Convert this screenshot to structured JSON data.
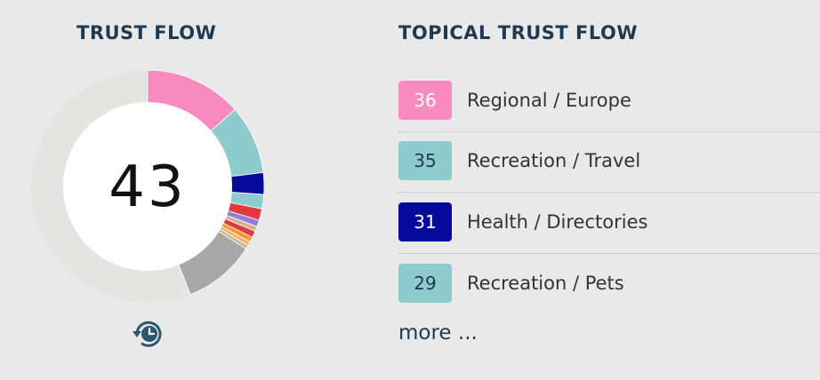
{
  "trust_flow": {
    "title": "TRUST FLOW",
    "score": "43",
    "track_color": "#e4e4e3",
    "segments": [
      {
        "value": 13.5,
        "color": "#f78bbf"
      },
      {
        "value": 9.6,
        "color": "#8ecbcc"
      },
      {
        "value": 3.0,
        "color": "#050a9c"
      },
      {
        "value": 2.0,
        "color": "#8ecbcc"
      },
      {
        "value": 1.6,
        "color": "#e0393e"
      },
      {
        "value": 0.9,
        "color": "#8e7ede"
      },
      {
        "value": 0.7,
        "color": "#d4b48a"
      },
      {
        "value": 0.9,
        "color": "#e0393e"
      },
      {
        "value": 0.7,
        "color": "#f39a33"
      },
      {
        "value": 0.6,
        "color": "#f4b66a"
      },
      {
        "value": 0.5,
        "color": "#c8b48f"
      },
      {
        "value": 10.0,
        "color": "#a8a8a8"
      }
    ],
    "history_icon": "history-clock-icon"
  },
  "topical_trust_flow": {
    "title": "TOPICAL TRUST FLOW",
    "topics": [
      {
        "score": "36",
        "label": "Regional / Europe",
        "color": "#f78bbf",
        "text_color": "#ffffff"
      },
      {
        "score": "35",
        "label": "Recreation / Travel",
        "color": "#8ecbcc",
        "text_color": "#1d3a52"
      },
      {
        "score": "31",
        "label": "Health / Directories",
        "color": "#050a9c",
        "text_color": "#ffffff"
      },
      {
        "score": "29",
        "label": "Recreation / Pets",
        "color": "#8ecbcc",
        "text_color": "#1d3a52"
      }
    ],
    "more_label": "more ..."
  }
}
